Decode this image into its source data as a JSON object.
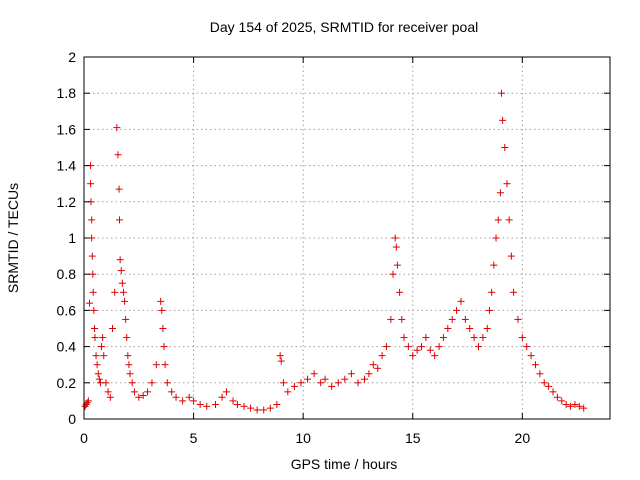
{
  "chart_data": {
    "type": "scatter",
    "title": "Day 154 of 2025, SRMTID for receiver poal",
    "xlabel": "GPS time / hours",
    "ylabel": "SRMTID / TECUs",
    "xlim": [
      0,
      24
    ],
    "ylim": [
      0,
      2
    ],
    "xticks": [
      0,
      5,
      10,
      15,
      20
    ],
    "xtick_labels": [
      "0",
      "5",
      "10",
      "15",
      "20"
    ],
    "yticks": [
      0,
      0.2,
      0.4,
      0.6,
      0.8,
      1,
      1.2,
      1.4,
      1.6,
      1.8,
      2
    ],
    "ytick_labels": [
      "0",
      "0.2",
      "0.4",
      "0.6",
      "0.8",
      "1",
      "1.2",
      "1.4",
      "1.6",
      "1.8",
      "2"
    ],
    "grid": true,
    "marker": "+",
    "color": "#e00000",
    "series": [
      {
        "name": "SRMTID",
        "x": [
          0.05,
          0.1,
          0.15,
          0.2,
          0.25,
          0.3,
          0.3,
          0.32,
          0.35,
          0.35,
          0.38,
          0.4,
          0.42,
          0.45,
          0.48,
          0.5,
          0.55,
          0.6,
          0.65,
          0.7,
          0.75,
          0.8,
          0.85,
          0.9,
          1.0,
          1.1,
          1.2,
          1.3,
          1.4,
          1.5,
          1.55,
          1.6,
          1.62,
          1.65,
          1.7,
          1.75,
          1.8,
          1.85,
          1.9,
          1.95,
          2.0,
          2.05,
          2.1,
          2.2,
          2.3,
          2.5,
          2.7,
          2.9,
          3.1,
          3.3,
          3.5,
          3.55,
          3.6,
          3.65,
          3.7,
          3.8,
          4.0,
          4.2,
          4.5,
          4.8,
          5.0,
          5.3,
          5.6,
          6.0,
          6.3,
          6.5,
          6.8,
          7.0,
          7.3,
          7.6,
          7.9,
          8.2,
          8.5,
          8.8,
          8.95,
          9.0,
          9.1,
          9.3,
          9.6,
          9.9,
          10.2,
          10.5,
          10.8,
          11.0,
          11.3,
          11.6,
          11.9,
          12.2,
          12.5,
          12.8,
          13.0,
          13.2,
          13.4,
          13.6,
          13.8,
          14.0,
          14.1,
          14.2,
          14.25,
          14.3,
          14.4,
          14.5,
          14.6,
          14.8,
          15.0,
          15.2,
          15.4,
          15.6,
          15.8,
          16.0,
          16.2,
          16.4,
          16.6,
          16.8,
          17.0,
          17.2,
          17.4,
          17.6,
          17.8,
          18.0,
          18.2,
          18.4,
          18.5,
          18.6,
          18.7,
          18.8,
          18.9,
          19.0,
          19.05,
          19.1,
          19.2,
          19.3,
          19.4,
          19.5,
          19.6,
          19.8,
          20.0,
          20.2,
          20.4,
          20.6,
          20.8,
          21.0,
          21.2,
          21.4,
          21.6,
          21.8,
          22.0,
          22.2,
          22.4,
          22.6,
          22.8
        ],
        "y": [
          0.07,
          0.08,
          0.09,
          0.1,
          0.64,
          1.4,
          1.3,
          1.2,
          1.1,
          1.0,
          0.9,
          0.8,
          0.7,
          0.6,
          0.5,
          0.45,
          0.35,
          0.3,
          0.25,
          0.22,
          0.2,
          0.4,
          0.45,
          0.35,
          0.2,
          0.15,
          0.12,
          0.5,
          0.7,
          1.61,
          1.46,
          1.27,
          1.1,
          0.88,
          0.82,
          0.75,
          0.7,
          0.65,
          0.55,
          0.45,
          0.35,
          0.3,
          0.25,
          0.2,
          0.15,
          0.12,
          0.13,
          0.15,
          0.2,
          0.3,
          0.65,
          0.6,
          0.5,
          0.4,
          0.3,
          0.2,
          0.15,
          0.12,
          0.1,
          0.12,
          0.1,
          0.08,
          0.07,
          0.08,
          0.12,
          0.15,
          0.1,
          0.08,
          0.07,
          0.06,
          0.05,
          0.05,
          0.06,
          0.08,
          0.35,
          0.32,
          0.2,
          0.15,
          0.18,
          0.2,
          0.22,
          0.25,
          0.2,
          0.22,
          0.18,
          0.2,
          0.22,
          0.25,
          0.2,
          0.22,
          0.25,
          0.3,
          0.28,
          0.35,
          0.4,
          0.55,
          0.8,
          1.0,
          0.95,
          0.85,
          0.7,
          0.55,
          0.45,
          0.4,
          0.35,
          0.38,
          0.4,
          0.45,
          0.38,
          0.35,
          0.4,
          0.45,
          0.5,
          0.55,
          0.6,
          0.65,
          0.55,
          0.5,
          0.45,
          0.4,
          0.45,
          0.5,
          0.6,
          0.7,
          0.85,
          1.0,
          1.1,
          1.25,
          1.8,
          1.65,
          1.5,
          1.3,
          1.1,
          0.9,
          0.7,
          0.55,
          0.45,
          0.4,
          0.35,
          0.3,
          0.25,
          0.2,
          0.18,
          0.15,
          0.12,
          0.1,
          0.08,
          0.07,
          0.08,
          0.07,
          0.06
        ]
      }
    ]
  }
}
